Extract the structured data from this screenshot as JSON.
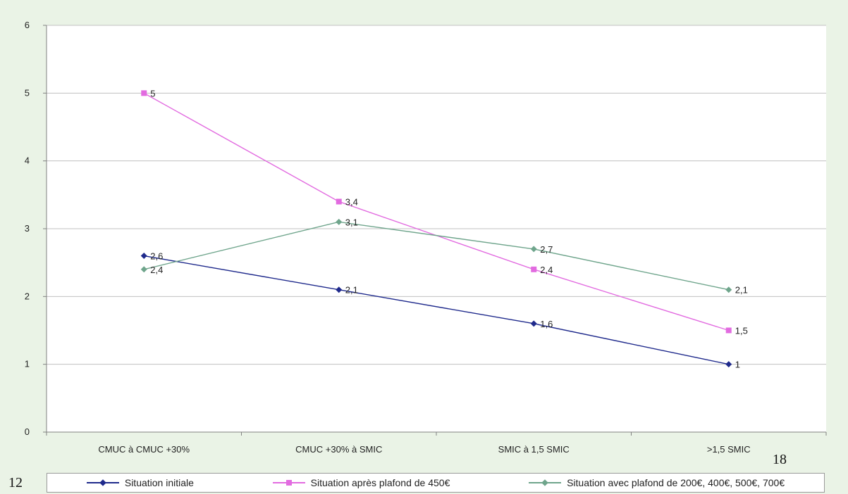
{
  "chart_data": {
    "type": "line",
    "categories": [
      "CMUC à CMUC +30%",
      "CMUC +30% à SMIC",
      "SMIC à 1,5 SMIC",
      ">1,5 SMIC"
    ],
    "ylim": [
      0,
      6
    ],
    "yticks": [
      "0",
      "1",
      "2",
      "3",
      "4",
      "5",
      "6"
    ],
    "grid": true,
    "legend_position": "bottom",
    "series": [
      {
        "name": "Situation initiale",
        "values": [
          2.6,
          2.1,
          1.6,
          1
        ],
        "labels": [
          "2,6",
          "2,1",
          "1,6",
          "1"
        ],
        "color": "#1f2a8c",
        "marker": "diamond"
      },
      {
        "name": "Situation après plafond de 450€",
        "values": [
          5,
          3.4,
          2.4,
          1.5
        ],
        "labels": [
          "5",
          "3,4",
          "2,4",
          "1,5"
        ],
        "color": "#e26be0",
        "marker": "square"
      },
      {
        "name": "Situation avec plafond de 200€, 400€, 500€, 700€",
        "values": [
          2.4,
          3.1,
          2.7,
          2.1
        ],
        "labels": [
          "2,4",
          "3,1",
          "2,7",
          "2,1"
        ],
        "color": "#6fa58c",
        "marker": "diamond"
      }
    ]
  },
  "page": {
    "number_left": "12",
    "number_right": "18"
  },
  "colors": {
    "background": "#eaf3e6",
    "plot_background": "#ffffff",
    "gridline": "#c0c0c0"
  }
}
